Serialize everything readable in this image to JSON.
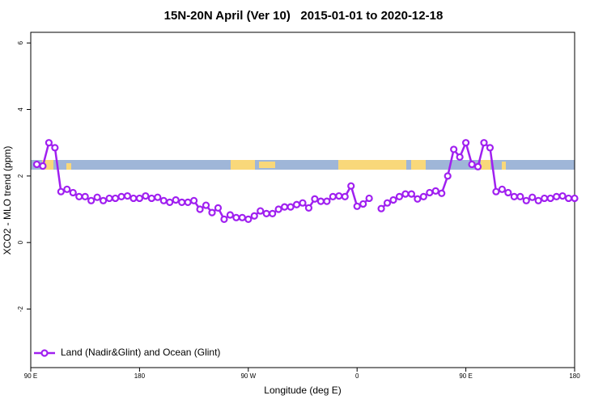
{
  "chart_data": {
    "type": "line",
    "title": "15N-20N April (Ver 10)   2015-01-01 to 2020-12-18",
    "xlabel": "Longitude (deg E)",
    "ylabel": "XCO2 - MLO trend (ppm)",
    "x": [
      95,
      100,
      105,
      110,
      115,
      120,
      125,
      130,
      135,
      140,
      145,
      150,
      155,
      160,
      165,
      170,
      175,
      180,
      185,
      190,
      195,
      200,
      205,
      210,
      215,
      220,
      225,
      230,
      235,
      240,
      245,
      250,
      255,
      260,
      265,
      270,
      275,
      280,
      285,
      290,
      295,
      300,
      305,
      310,
      315,
      320,
      325,
      330,
      335,
      340,
      345,
      350,
      355,
      360,
      365,
      370,
      375,
      380,
      385,
      390,
      395,
      400,
      405,
      410,
      415,
      420,
      425,
      430,
      435,
      440,
      445,
      450,
      455,
      460,
      465,
      470,
      475,
      480,
      485,
      490,
      495,
      500,
      505,
      510,
      515,
      520,
      525,
      530,
      535,
      540
    ],
    "series": [
      {
        "name": "Land (Nadir&Glint) and Ocean (Glint)",
        "color": "#a020f0",
        "values": [
          2.35,
          2.3,
          3.0,
          2.85,
          1.53,
          1.6,
          1.5,
          1.38,
          1.38,
          1.26,
          1.36,
          1.26,
          1.33,
          1.33,
          1.38,
          1.4,
          1.33,
          1.33,
          1.4,
          1.33,
          1.36,
          1.26,
          1.21,
          1.28,
          1.21,
          1.21,
          1.26,
          1.0,
          1.12,
          0.9,
          1.04,
          0.7,
          0.83,
          0.75,
          0.75,
          0.7,
          0.8,
          0.95,
          0.87,
          0.87,
          1.0,
          1.07,
          1.07,
          1.14,
          1.19,
          1.04,
          1.31,
          1.24,
          1.24,
          1.38,
          1.4,
          1.38,
          1.7,
          1.09,
          1.16,
          1.33,
          null,
          1.02,
          1.19,
          1.28,
          1.38,
          1.46,
          1.46,
          1.31,
          1.38,
          1.5,
          1.55,
          1.48,
          2.0,
          2.8,
          2.57,
          3.0,
          2.35,
          2.28,
          3.0,
          2.85,
          1.53,
          1.6,
          1.5,
          1.38,
          1.38,
          1.26,
          1.36,
          1.26,
          1.33,
          1.33,
          1.38,
          1.4,
          1.33,
          1.33
        ]
      }
    ],
    "xlim": [
      90,
      540
    ],
    "ylim": [
      -3.76,
      6.32
    ],
    "xticks": [
      {
        "value": 90,
        "label": "90 E"
      },
      180,
      {
        "value": 270,
        "label": "90 W"
      },
      {
        "value": 360,
        "label": "0"
      },
      {
        "value": 450,
        "label": "90 E"
      },
      {
        "value": 540,
        "label": "180"
      }
    ],
    "yticks": [
      -2,
      0,
      2,
      4,
      6
    ],
    "legend": "bottom-left"
  }
}
